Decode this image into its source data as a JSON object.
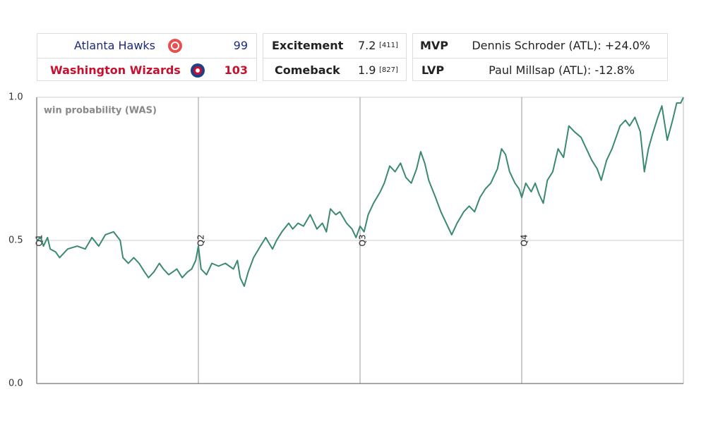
{
  "scoreboard": {
    "teams": [
      {
        "name": "Atlanta Hawks",
        "score": 99
      },
      {
        "name": "Washington Wizards",
        "score": 103
      }
    ]
  },
  "stats": [
    {
      "label": "Excitement",
      "value": 7.2,
      "rank": "[411]"
    },
    {
      "label": "Comeback",
      "value": 1.9,
      "rank": "[827]"
    }
  ],
  "players": [
    {
      "label": "MVP",
      "text": "Dennis Schroder (ATL): +24.0%"
    },
    {
      "label": "LVP",
      "text": "Paul Millsap (ATL): -12.8%"
    }
  ],
  "chart_data": {
    "type": "line",
    "y_label": "win probability (WAS)",
    "color": "#3a8a6e",
    "xlim": [
      0,
      48
    ],
    "x_markers": [
      {
        "value": 0,
        "label": "Q1"
      },
      {
        "value": 12,
        "label": "Q2"
      },
      {
        "value": 24,
        "label": "Q3"
      },
      {
        "value": 36,
        "label": "Q4"
      }
    ],
    "ylim": [
      0,
      1
    ],
    "yticks": [
      {
        "value": 0,
        "label": "0.0"
      },
      0.5,
      {
        "value": 1,
        "label": "1.0"
      }
    ],
    "grid": true,
    "x": [
      0.0,
      0.3,
      0.5,
      0.8,
      1.0,
      1.4,
      1.7,
      2.3,
      3.0,
      3.6,
      4.1,
      4.6,
      5.1,
      5.7,
      6.2,
      6.4,
      6.8,
      7.2,
      7.6,
      8.0,
      8.3,
      8.7,
      9.1,
      9.4,
      9.8,
      10.4,
      10.8,
      11.2,
      11.5,
      11.8,
      12.0,
      12.2,
      12.6,
      13.0,
      13.5,
      14.0,
      14.6,
      14.9,
      15.1,
      15.4,
      15.7,
      16.1,
      16.6,
      17.0,
      17.5,
      17.8,
      18.2,
      18.7,
      19.0,
      19.4,
      19.8,
      20.3,
      20.8,
      21.2,
      21.5,
      21.8,
      22.2,
      22.5,
      23.0,
      23.4,
      23.7,
      24.0,
      24.3,
      24.6,
      25.0,
      25.5,
      25.8,
      26.2,
      26.6,
      27.0,
      27.4,
      27.8,
      28.2,
      28.5,
      28.8,
      29.1,
      29.6,
      30.0,
      30.4,
      30.8,
      31.2,
      31.7,
      32.1,
      32.5,
      32.9,
      33.3,
      33.7,
      34.2,
      34.5,
      34.8,
      35.1,
      35.5,
      35.8,
      36.0,
      36.3,
      36.7,
      37.0,
      37.3,
      37.6,
      37.9,
      38.3,
      38.7,
      39.1,
      39.5,
      39.9,
      40.4,
      40.8,
      41.2,
      41.6,
      41.9,
      42.3,
      42.7,
      43.0,
      43.3,
      43.7,
      44.0,
      44.4,
      44.8,
      45.1,
      45.4,
      45.7,
      46.1,
      46.4,
      46.8,
      47.2,
      47.5,
      47.8,
      48.0
    ],
    "values": [
      0.5,
      0.51,
      0.48,
      0.51,
      0.47,
      0.46,
      0.44,
      0.47,
      0.48,
      0.47,
      0.51,
      0.48,
      0.52,
      0.53,
      0.5,
      0.44,
      0.42,
      0.44,
      0.42,
      0.39,
      0.37,
      0.39,
      0.42,
      0.4,
      0.38,
      0.4,
      0.37,
      0.39,
      0.4,
      0.43,
      0.48,
      0.4,
      0.38,
      0.42,
      0.41,
      0.42,
      0.4,
      0.43,
      0.37,
      0.34,
      0.39,
      0.44,
      0.48,
      0.51,
      0.47,
      0.5,
      0.53,
      0.56,
      0.54,
      0.56,
      0.55,
      0.59,
      0.54,
      0.56,
      0.53,
      0.61,
      0.59,
      0.6,
      0.56,
      0.54,
      0.51,
      0.55,
      0.53,
      0.59,
      0.63,
      0.67,
      0.7,
      0.76,
      0.74,
      0.77,
      0.72,
      0.7,
      0.75,
      0.81,
      0.77,
      0.71,
      0.65,
      0.6,
      0.56,
      0.52,
      0.56,
      0.6,
      0.62,
      0.6,
      0.65,
      0.68,
      0.7,
      0.75,
      0.82,
      0.8,
      0.74,
      0.7,
      0.68,
      0.65,
      0.7,
      0.67,
      0.7,
      0.66,
      0.63,
      0.71,
      0.74,
      0.82,
      0.79,
      0.9,
      0.88,
      0.86,
      0.82,
      0.78,
      0.75,
      0.71,
      0.78,
      0.82,
      0.86,
      0.9,
      0.92,
      0.9,
      0.93,
      0.88,
      0.74,
      0.82,
      0.87,
      0.93,
      0.97,
      0.85,
      0.92,
      0.98,
      0.98,
      1.0
    ]
  }
}
